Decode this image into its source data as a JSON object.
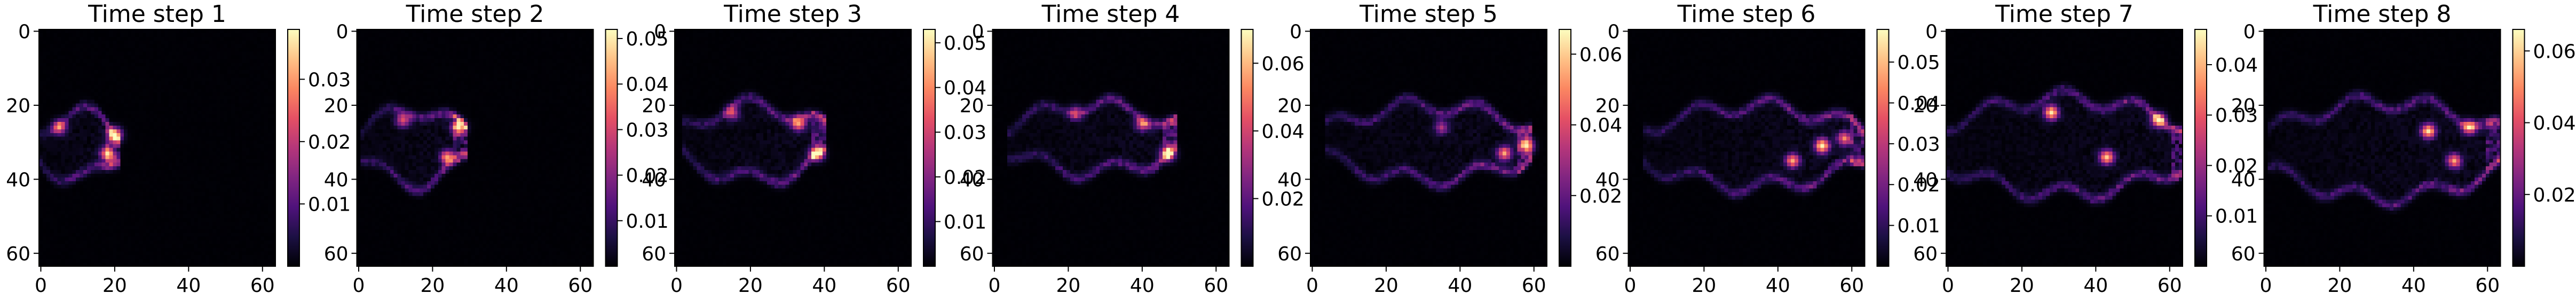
{
  "colormap": "magma",
  "colors": {
    "background": "#ffffff",
    "axis": "#000000"
  },
  "chart_data": [
    {
      "type": "heatmap",
      "title": "Time step 1",
      "x_ticks": [
        0,
        20,
        40,
        60
      ],
      "y_ticks": [
        0,
        20,
        40,
        60
      ],
      "xlim": [
        0,
        64
      ],
      "ylim": [
        64,
        0
      ],
      "colorbar": {
        "range": [
          0,
          0.038
        ],
        "ticks": [
          0.01,
          0.02,
          0.03
        ]
      },
      "feature": {
        "front_x": 20,
        "tail_x": 0,
        "center_y": 31,
        "half_width": 9,
        "hot": [
          [
            20,
            28,
            0.035
          ],
          [
            18,
            33,
            0.03
          ],
          [
            5,
            26,
            0.024
          ]
        ]
      }
    },
    {
      "type": "heatmap",
      "title": "Time step 2",
      "x_ticks": [
        0,
        20,
        40,
        60
      ],
      "y_ticks": [
        0,
        20,
        40,
        60
      ],
      "xlim": [
        0,
        64
      ],
      "ylim": [
        64,
        0
      ],
      "colorbar": {
        "range": [
          0,
          0.052
        ],
        "ticks": [
          0.01,
          0.02,
          0.03,
          0.04,
          0.05
        ]
      },
      "feature": {
        "front_x": 28,
        "tail_x": 2,
        "center_y": 31,
        "half_width": 10,
        "hot": [
          [
            27,
            26,
            0.045
          ],
          [
            24,
            34,
            0.04
          ],
          [
            12,
            24,
            0.03
          ]
        ]
      }
    },
    {
      "type": "heatmap",
      "title": "Time step 3",
      "x_ticks": [
        0,
        20,
        40,
        60
      ],
      "y_ticks": [
        0,
        20,
        40,
        60
      ],
      "xlim": [
        0,
        64
      ],
      "ylim": [
        64,
        0
      ],
      "colorbar": {
        "range": [
          0,
          0.053
        ],
        "ticks": [
          0.01,
          0.02,
          0.03,
          0.04,
          0.05
        ]
      },
      "feature": {
        "front_x": 39,
        "tail_x": 3,
        "center_y": 30,
        "half_width": 10,
        "hot": [
          [
            38,
            33,
            0.048
          ],
          [
            33,
            25,
            0.04
          ],
          [
            15,
            22,
            0.03
          ]
        ]
      }
    },
    {
      "type": "heatmap",
      "title": "Time step 4",
      "x_ticks": [
        0,
        20,
        40,
        60
      ],
      "y_ticks": [
        0,
        20,
        40,
        60
      ],
      "xlim": [
        0,
        64
      ],
      "ylim": [
        64,
        0
      ],
      "colorbar": {
        "range": [
          0,
          0.07
        ],
        "ticks": [
          0.02,
          0.04,
          0.06
        ]
      },
      "feature": {
        "front_x": 48,
        "tail_x": 5,
        "center_y": 29,
        "half_width": 9,
        "hot": [
          [
            47,
            33,
            0.065
          ],
          [
            40,
            25,
            0.04
          ],
          [
            22,
            22,
            0.03
          ]
        ]
      }
    },
    {
      "type": "heatmap",
      "title": "Time step 5",
      "x_ticks": [
        0,
        20,
        40,
        60
      ],
      "y_ticks": [
        0,
        20,
        40,
        60
      ],
      "xlim": [
        0,
        64
      ],
      "ylim": [
        64,
        0
      ],
      "colorbar": {
        "range": [
          0,
          0.067
        ],
        "ticks": [
          0.02,
          0.04,
          0.06
        ]
      },
      "feature": {
        "front_x": 58,
        "tail_x": 5,
        "center_y": 30,
        "half_width": 10,
        "hot": [
          [
            58,
            31,
            0.06
          ],
          [
            52,
            33,
            0.05
          ],
          [
            35,
            26,
            0.03
          ]
        ]
      }
    },
    {
      "type": "heatmap",
      "title": "Time step 6",
      "x_ticks": [
        0,
        20,
        40,
        60
      ],
      "y_ticks": [
        0,
        20,
        40,
        60
      ],
      "xlim": [
        0,
        64
      ],
      "ylim": [
        64,
        0
      ],
      "colorbar": {
        "range": [
          0,
          0.058
        ],
        "ticks": [
          0.01,
          0.02,
          0.03,
          0.04,
          0.05
        ]
      },
      "feature": {
        "front_x": 62,
        "tail_x": 5,
        "center_y": 31,
        "half_width": 11,
        "hot": [
          [
            52,
            31,
            0.055
          ],
          [
            44,
            35,
            0.045
          ],
          [
            58,
            29,
            0.04
          ]
        ]
      }
    },
    {
      "type": "heatmap",
      "title": "Time step 7",
      "x_ticks": [
        0,
        20,
        40,
        60
      ],
      "y_ticks": [
        0,
        20,
        40,
        60
      ],
      "xlim": [
        0,
        64
      ],
      "ylim": [
        64,
        0
      ],
      "colorbar": {
        "range": [
          0,
          0.047
        ],
        "ticks": [
          0.01,
          0.02,
          0.03,
          0.04
        ]
      },
      "feature": {
        "front_x": 63,
        "tail_x": 0,
        "center_y": 31,
        "half_width": 13,
        "hot": [
          [
            28,
            22,
            0.045
          ],
          [
            43,
            34,
            0.04
          ],
          [
            57,
            24,
            0.04
          ]
        ]
      }
    },
    {
      "type": "heatmap",
      "title": "Time step 8",
      "x_ticks": [
        0,
        20,
        40,
        60
      ],
      "y_ticks": [
        0,
        20,
        40,
        60
      ],
      "xlim": [
        0,
        64
      ],
      "ylim": [
        64,
        0
      ],
      "colorbar": {
        "range": [
          0,
          0.066
        ],
        "ticks": [
          0.02,
          0.04,
          0.06
        ]
      },
      "feature": {
        "front_x": 62,
        "tail_x": 2,
        "center_y": 32,
        "half_width": 13,
        "hot": [
          [
            44,
            27,
            0.06
          ],
          [
            51,
            35,
            0.05
          ],
          [
            55,
            26,
            0.045
          ]
        ]
      }
    }
  ]
}
